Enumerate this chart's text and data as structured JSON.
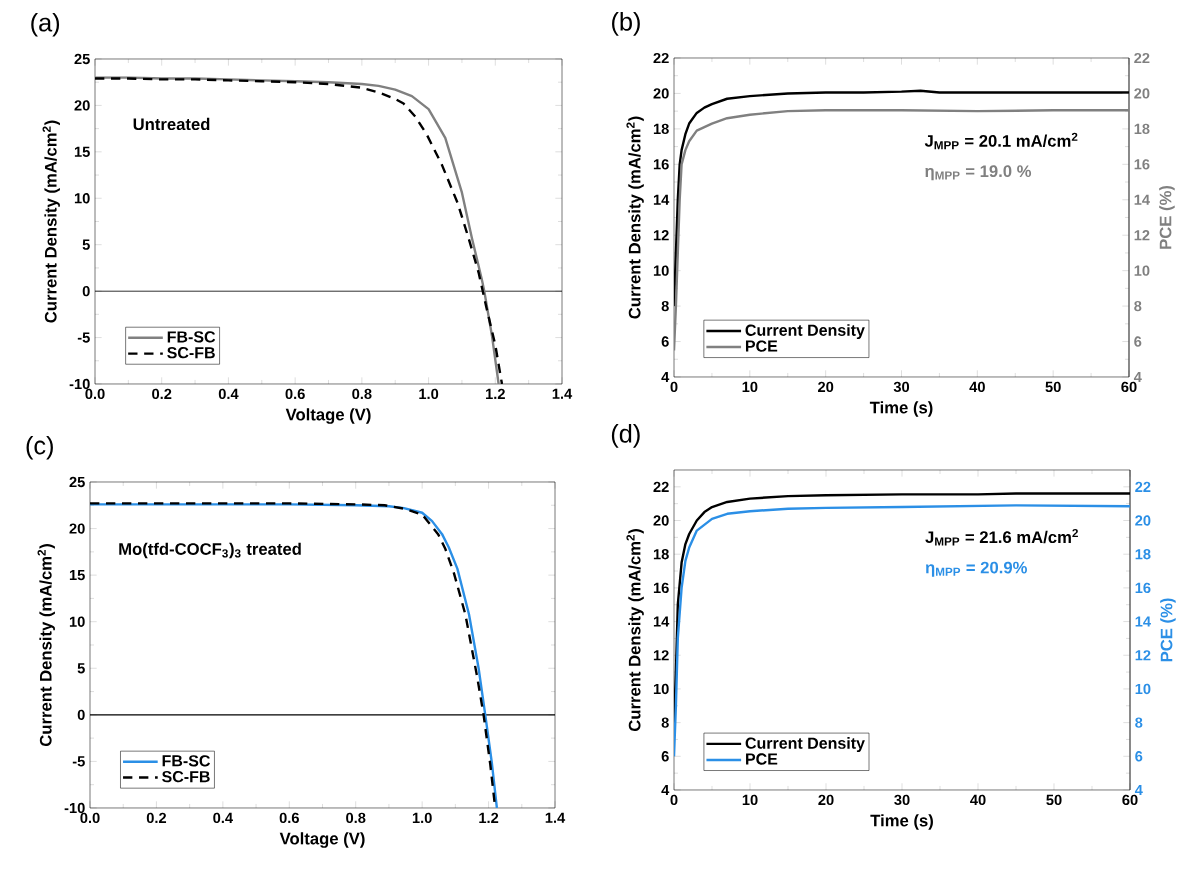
{
  "chart_data": [
    {
      "type": "line",
      "title": "(a)",
      "xlabel": "Voltage (V)",
      "ylabel": "Current Density (mA/cm$^{2}$)",
      "xlim": [
        0,
        1.4
      ],
      "ylim": [
        -10,
        25
      ],
      "xticks": [
        {
          "value": 0,
          "label": "0.0"
        },
        {
          "value": 0.2,
          "label": "0.2"
        },
        {
          "value": 0.4,
          "label": "0.4"
        },
        {
          "value": 0.6,
          "label": "0.6"
        },
        {
          "value": 0.8,
          "label": "0.8"
        },
        {
          "value": 1,
          "label": "1.0"
        },
        {
          "value": 1.2,
          "label": "1.2"
        },
        {
          "value": 1.4,
          "label": "1.4"
        }
      ],
      "yticks": [
        -10,
        -5,
        0,
        5,
        10,
        15,
        20,
        25
      ],
      "legend": "bottom left",
      "annotations": [
        "Untreated"
      ],
      "ref_lines": [
        {
          "axis": "y",
          "value": 0,
          "color": "#000000"
        }
      ],
      "series": [
        {
          "name": "FB-SC",
          "color": "#808080",
          "x": [
            0,
            0.1,
            0.2,
            0.3,
            0.4,
            0.5,
            0.6,
            0.7,
            0.8,
            0.85,
            0.9,
            0.95,
            1.0,
            1.05,
            1.1,
            1.13,
            1.16,
            1.167,
            1.19,
            1.21
          ],
          "values": [
            23.0,
            23.0,
            22.9,
            22.9,
            22.8,
            22.7,
            22.6,
            22.5,
            22.3,
            22.1,
            21.7,
            21.0,
            19.6,
            16.5,
            10.6,
            5.7,
            1.2,
            0,
            -4.8,
            -10
          ]
        },
        {
          "name": "SC-FB",
          "color": "#000000",
          "line_style": "dashed",
          "x": [
            0,
            0.1,
            0.2,
            0.3,
            0.4,
            0.5,
            0.6,
            0.7,
            0.75,
            0.8,
            0.85,
            0.9,
            0.925,
            0.96,
            0.994,
            1.04,
            1.087,
            1.12,
            1.15,
            1.173,
            1.2,
            1.22
          ],
          "values": [
            22.9,
            22.9,
            22.8,
            22.8,
            22.7,
            22.6,
            22.5,
            22.3,
            22.1,
            21.9,
            21.4,
            20.7,
            20.2,
            18.8,
            16.9,
            13.6,
            9.5,
            5.7,
            2.0,
            -1.7,
            -5.8,
            -10
          ]
        }
      ]
    },
    {
      "type": "line",
      "title": "(b)",
      "xlabel": "Time (s)",
      "ylabel": "Current Density (mA/cm$^{2}$)",
      "y2label": "PCE (%)",
      "xlim": [
        0,
        60
      ],
      "ylim": [
        4,
        22
      ],
      "y2lim": [
        4,
        22
      ],
      "xticks": [
        0,
        10,
        20,
        30,
        40,
        50,
        60
      ],
      "yticks": [
        4,
        6,
        8,
        10,
        12,
        14,
        16,
        18,
        20,
        22
      ],
      "y2ticks": [
        4,
        6,
        8,
        10,
        12,
        14,
        16,
        18,
        20,
        22
      ],
      "legend": "bottom left",
      "annotations": [
        "J$_{MPP}$ = 20.1 mA/cm$^{2}$",
        "η$_{MPP}$ = 19.0 %"
      ],
      "series": [
        {
          "name": "Current Density",
          "color": "#000000",
          "x": [
            0,
            0.25,
            0.5,
            0.75,
            1,
            1.5,
            2,
            3,
            4,
            5,
            7,
            10,
            15,
            20,
            25,
            30,
            32.5,
            35,
            40,
            50,
            60
          ],
          "values": [
            8,
            11,
            14,
            16,
            16.8,
            17.7,
            18.3,
            18.9,
            19.2,
            19.4,
            19.7,
            19.85,
            20.0,
            20.05,
            20.05,
            20.1,
            20.15,
            20.05,
            20.05,
            20.05,
            20.05
          ]
        },
        {
          "name": "PCE",
          "color": "#808080",
          "axis": "y2",
          "x": [
            0,
            0.25,
            0.5,
            0.75,
            1,
            1.5,
            2,
            3,
            4,
            5,
            7,
            10,
            15,
            20,
            30,
            40,
            50,
            60
          ],
          "values": [
            5.5,
            8,
            11,
            14,
            16,
            16.8,
            17.3,
            17.9,
            18.1,
            18.3,
            18.6,
            18.8,
            19.0,
            19.05,
            19.05,
            19.0,
            19.05,
            19.05
          ]
        }
      ]
    },
    {
      "type": "line",
      "title": "(c)",
      "xlabel": "Voltage (V)",
      "ylabel": "Current Density (mA/cm$^{2}$)",
      "xlim": [
        0,
        1.4
      ],
      "ylim": [
        -10,
        25
      ],
      "xticks": [
        {
          "value": 0,
          "label": "0.0"
        },
        {
          "value": 0.2,
          "label": "0.2"
        },
        {
          "value": 0.4,
          "label": "0.4"
        },
        {
          "value": 0.6,
          "label": "0.6"
        },
        {
          "value": 0.8,
          "label": "0.8"
        },
        {
          "value": 1,
          "label": "1.0"
        },
        {
          "value": 1.2,
          "label": "1.2"
        },
        {
          "value": 1.4,
          "label": "1.4"
        }
      ],
      "yticks": [
        -10,
        -5,
        0,
        5,
        10,
        15,
        20,
        25
      ],
      "legend": "bottom left",
      "annotations": [
        "Mo(tfd-COCF$_{3}$)$_{3}$ treated"
      ],
      "ref_lines": [
        {
          "axis": "y",
          "value": 0,
          "color": "#000000"
        }
      ],
      "series": [
        {
          "name": "FB-SC",
          "color": "#2b8fe6",
          "x": [
            0,
            0.1,
            0.2,
            0.4,
            0.6,
            0.8,
            0.9,
            0.945,
            1.0,
            1.03,
            1.06,
            1.08,
            1.106,
            1.141,
            1.17,
            1.19,
            1.21,
            1.225
          ],
          "values": [
            22.6,
            22.6,
            22.6,
            22.6,
            22.6,
            22.5,
            22.4,
            22.2,
            21.7,
            20.8,
            19.4,
            18.0,
            15.7,
            10.8,
            5.0,
            0,
            -5.2,
            -10
          ]
        },
        {
          "name": "SC-FB",
          "color": "#000000",
          "line_style": "dashed",
          "x": [
            0,
            0.1,
            0.2,
            0.4,
            0.6,
            0.8,
            0.887,
            0.95,
            1.0,
            1.048,
            1.07,
            1.095,
            1.13,
            1.165,
            1.185,
            1.205,
            1.22
          ],
          "values": [
            22.7,
            22.7,
            22.7,
            22.7,
            22.7,
            22.6,
            22.5,
            22.1,
            21.5,
            19.4,
            17.8,
            15.3,
            10.8,
            4.2,
            0,
            -5.3,
            -10
          ]
        }
      ]
    },
    {
      "type": "line",
      "title": "(d)",
      "xlabel": "Time (s)",
      "ylabel": "Current Density (mA/cm$^{2}$)",
      "y2label": "PCE (%)",
      "xlim": [
        0,
        60
      ],
      "ylim": [
        4,
        23
      ],
      "y2lim": [
        4,
        23
      ],
      "xticks": [
        0,
        10,
        20,
        30,
        40,
        50,
        60
      ],
      "yticks": [
        4,
        6,
        8,
        10,
        12,
        14,
        16,
        18,
        20,
        22
      ],
      "y2ticks": [
        4,
        6,
        8,
        10,
        12,
        14,
        16,
        18,
        20,
        22
      ],
      "legend": "bottom left",
      "annotations": [
        "J$_{MPP}$ = 21.6 mA/cm$^{2}$",
        "η$_{MPP}$ = 20.9%"
      ],
      "series": [
        {
          "name": "Current Density",
          "color": "#000000",
          "x": [
            0,
            0.25,
            0.5,
            1,
            1.5,
            2,
            3,
            4,
            5,
            7,
            10,
            15,
            20,
            30,
            40,
            45,
            50,
            60
          ],
          "values": [
            8,
            11,
            15,
            17.5,
            18.6,
            19.2,
            20.0,
            20.5,
            20.8,
            21.1,
            21.3,
            21.45,
            21.5,
            21.55,
            21.55,
            21.6,
            21.6,
            21.6
          ]
        },
        {
          "name": "PCE",
          "color": "#2b8fe6",
          "axis": "y2",
          "x": [
            0,
            0.25,
            0.5,
            1,
            1.5,
            2,
            3,
            5,
            7,
            10,
            15,
            20,
            30,
            45,
            60
          ],
          "values": [
            6,
            9,
            13,
            16,
            17.6,
            18.4,
            19.4,
            20.1,
            20.4,
            20.55,
            20.7,
            20.75,
            20.8,
            20.9,
            20.85
          ]
        }
      ]
    }
  ]
}
